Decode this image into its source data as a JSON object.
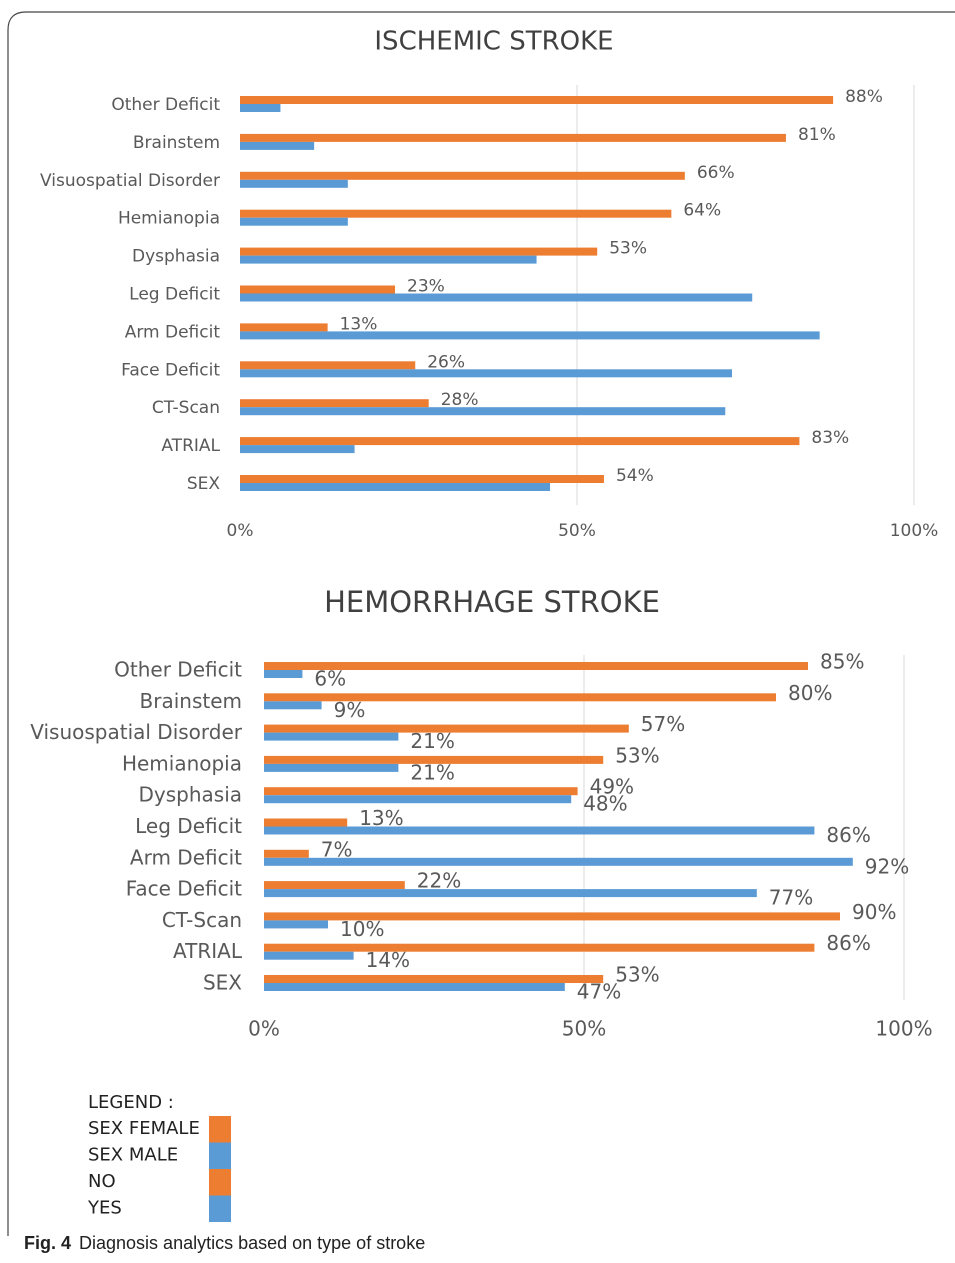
{
  "chart_data": [
    {
      "type": "bar",
      "orientation": "horizontal",
      "title": "ISCHEMIC STROKE",
      "categories": [
        "Other Deficit",
        "Brainstem",
        "Visuospatial Disorder",
        "Hemianopia",
        "Dysphasia",
        "Leg Deficit",
        "Arm Deficit",
        "Face Deficit",
        "CT-Scan",
        "ATRIAL",
        "SEX"
      ],
      "series": [
        {
          "color": "#ed7d31",
          "values": [
            88,
            81,
            66,
            64,
            53,
            23,
            13,
            26,
            28,
            83,
            54
          ],
          "value_labels": [
            "88%",
            "81%",
            "66%",
            "64%",
            "53%",
            "23%",
            "13%",
            "26%",
            "28%",
            "83%",
            "54%"
          ]
        },
        {
          "color": "#5b9bd5",
          "values": [
            6,
            11,
            16,
            16,
            44,
            76,
            86,
            73,
            72,
            17,
            46
          ]
        }
      ],
      "xlim": [
        0,
        100
      ],
      "xticks": [
        {
          "value": 0,
          "label": "0%"
        },
        {
          "value": 50,
          "label": "50%"
        },
        {
          "value": 100,
          "label": "100%"
        }
      ],
      "grid": true
    },
    {
      "type": "bar",
      "orientation": "horizontal",
      "title": "HEMORRHAGE STROKE",
      "categories": [
        "Other Deficit",
        "Brainstem",
        "Visuospatial Disorder",
        "Hemianopia",
        "Dysphasia",
        "Leg Deficit",
        "Arm Deficit",
        "Face Deficit",
        "CT-Scan",
        "ATRIAL",
        "SEX"
      ],
      "series": [
        {
          "color": "#ed7d31",
          "values": [
            85,
            80,
            57,
            53,
            49,
            13,
            7,
            22,
            90,
            86,
            53
          ],
          "value_labels": [
            "85%",
            "80%",
            "57%",
            "53%",
            "49%",
            "13%",
            "7%",
            "22%",
            "90%",
            "86%",
            "53%"
          ]
        },
        {
          "color": "#5b9bd5",
          "values": [
            6,
            9,
            21,
            21,
            48,
            86,
            92,
            77,
            10,
            14,
            47
          ],
          "value_labels": [
            "6%",
            "9%",
            "21%",
            "21%",
            "48%",
            "86%",
            "92%",
            "77%",
            "10%",
            "14%",
            "47%"
          ]
        }
      ],
      "xlim": [
        0,
        100
      ],
      "xticks": [
        {
          "value": 0,
          "label": "0%"
        },
        {
          "value": 50,
          "label": "50%"
        },
        {
          "value": 100,
          "label": "100%"
        }
      ],
      "grid": true
    }
  ],
  "legend": {
    "title": "LEGEND :",
    "items": [
      {
        "label": "SEX FEMALE",
        "color": "#ed7d31"
      },
      {
        "label": "SEX MALE",
        "color": "#5b9bd5"
      },
      {
        "label": "NO",
        "color": "#ed7d31"
      },
      {
        "label": "YES",
        "color": "#5b9bd5"
      }
    ]
  },
  "caption": {
    "label": "Fig. 4",
    "text": "Diagnosis analytics based on type of stroke"
  }
}
